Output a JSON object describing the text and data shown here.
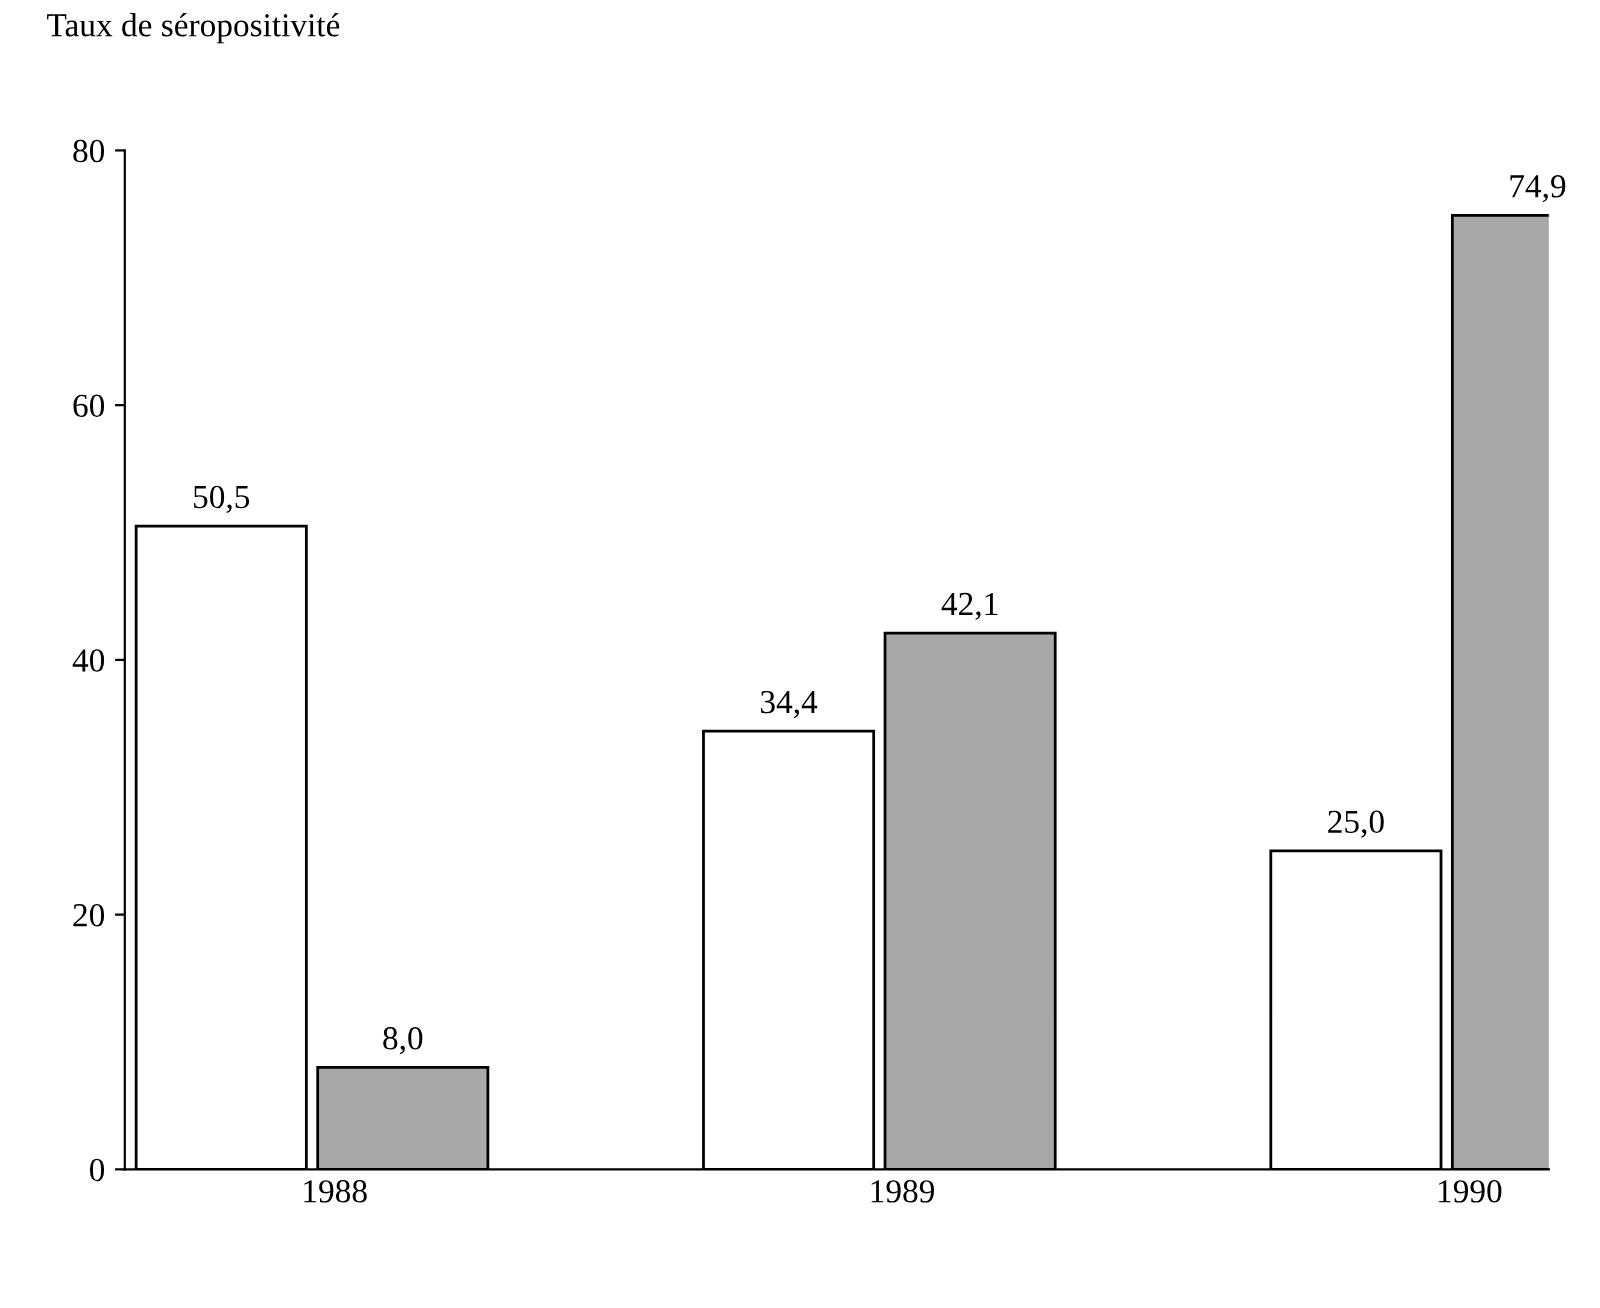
{
  "chart_data": {
    "type": "bar",
    "ylabel": "Taux de séropositivité",
    "categories": [
      "1988",
      "1989",
      "1990"
    ],
    "series": [
      {
        "color": "#ffffff",
        "values": [
          50.5,
          34.4,
          25.0
        ],
        "value_labels": [
          "50,5",
          "34,4",
          "25,0"
        ]
      },
      {
        "color": "#a8a8a8",
        "values": [
          8.0,
          42.1,
          74.9
        ],
        "value_labels": [
          "8,0",
          "42,1",
          "74,9"
        ]
      }
    ],
    "ylim": [
      0,
      80
    ],
    "yticks": [
      0,
      20,
      40,
      60,
      80
    ],
    "grid": false,
    "legend": false
  }
}
